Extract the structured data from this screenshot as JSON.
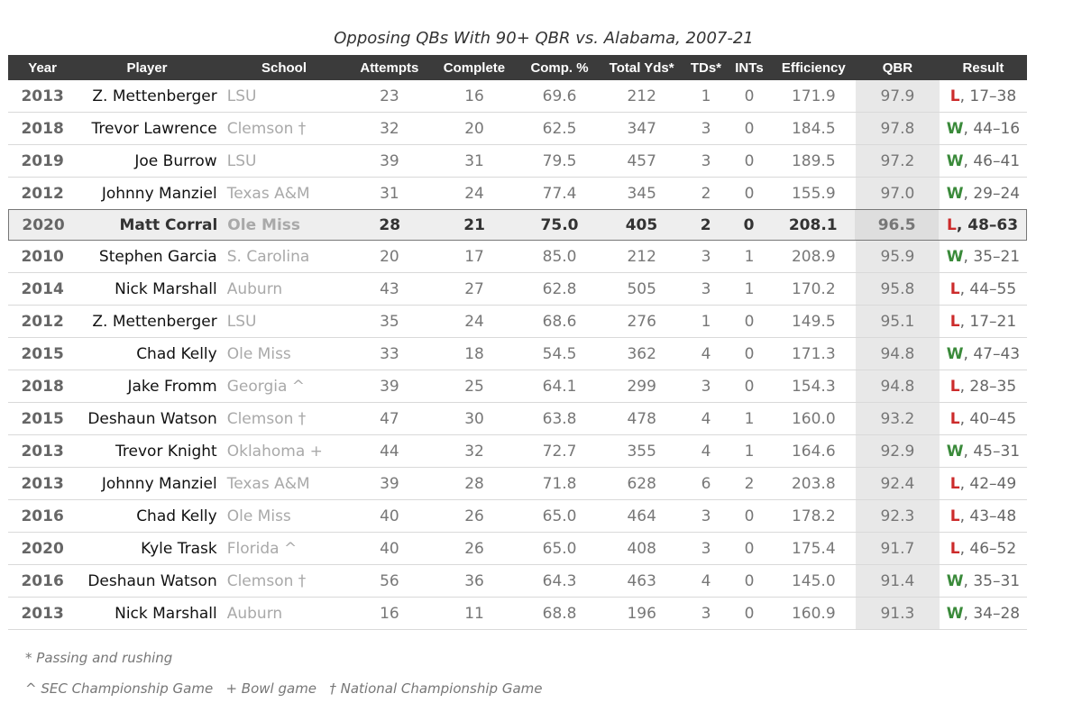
{
  "chart_data": {
    "type": "table",
    "title": "Opposing QBs With 90+ QBR vs. Alabama, 2007-21",
    "columns": [
      "Year",
      "Player",
      "School",
      "Attempts",
      "Complete",
      "Comp. %",
      "Total Yds*",
      "TDs*",
      "INTs",
      "Efficiency",
      "QBR",
      "Result"
    ],
    "highlight_row": 4,
    "rows": [
      {
        "year": "2013",
        "player": "Z. Mettenberger",
        "school": "LSU",
        "att": "23",
        "comp": "16",
        "pct": "69.6",
        "yds": "212",
        "td": "1",
        "int": "0",
        "eff": "171.9",
        "qbr": "97.9",
        "wl": "L",
        "score": ", 17–38"
      },
      {
        "year": "2018",
        "player": "Trevor Lawrence",
        "school": "Clemson †",
        "att": "32",
        "comp": "20",
        "pct": "62.5",
        "yds": "347",
        "td": "3",
        "int": "0",
        "eff": "184.5",
        "qbr": "97.8",
        "wl": "W",
        "score": ", 44–16"
      },
      {
        "year": "2019",
        "player": "Joe Burrow",
        "school": "LSU",
        "att": "39",
        "comp": "31",
        "pct": "79.5",
        "yds": "457",
        "td": "3",
        "int": "0",
        "eff": "189.5",
        "qbr": "97.2",
        "wl": "W",
        "score": ", 46–41"
      },
      {
        "year": "2012",
        "player": "Johnny Manziel",
        "school": "Texas A&M",
        "att": "31",
        "comp": "24",
        "pct": "77.4",
        "yds": "345",
        "td": "2",
        "int": "0",
        "eff": "155.9",
        "qbr": "97.0",
        "wl": "W",
        "score": ", 29–24"
      },
      {
        "year": "2020",
        "player": "Matt Corral",
        "school": "Ole Miss",
        "att": "28",
        "comp": "21",
        "pct": "75.0",
        "yds": "405",
        "td": "2",
        "int": "0",
        "eff": "208.1",
        "qbr": "96.5",
        "wl": "L",
        "score": ", 48–63"
      },
      {
        "year": "2010",
        "player": "Stephen Garcia",
        "school": "S. Carolina",
        "att": "20",
        "comp": "17",
        "pct": "85.0",
        "yds": "212",
        "td": "3",
        "int": "1",
        "eff": "208.9",
        "qbr": "95.9",
        "wl": "W",
        "score": ", 35–21"
      },
      {
        "year": "2014",
        "player": "Nick Marshall",
        "school": "Auburn",
        "att": "43",
        "comp": "27",
        "pct": "62.8",
        "yds": "505",
        "td": "3",
        "int": "1",
        "eff": "170.2",
        "qbr": "95.8",
        "wl": "L",
        "score": ", 44–55"
      },
      {
        "year": "2012",
        "player": "Z. Mettenberger",
        "school": "LSU",
        "att": "35",
        "comp": "24",
        "pct": "68.6",
        "yds": "276",
        "td": "1",
        "int": "0",
        "eff": "149.5",
        "qbr": "95.1",
        "wl": "L",
        "score": ", 17–21"
      },
      {
        "year": "2015",
        "player": "Chad Kelly",
        "school": "Ole Miss",
        "att": "33",
        "comp": "18",
        "pct": "54.5",
        "yds": "362",
        "td": "4",
        "int": "0",
        "eff": "171.3",
        "qbr": "94.8",
        "wl": "W",
        "score": ", 47–43"
      },
      {
        "year": "2018",
        "player": "Jake Fromm",
        "school": "Georgia ^",
        "att": "39",
        "comp": "25",
        "pct": "64.1",
        "yds": "299",
        "td": "3",
        "int": "0",
        "eff": "154.3",
        "qbr": "94.8",
        "wl": "L",
        "score": ", 28–35"
      },
      {
        "year": "2015",
        "player": "Deshaun Watson",
        "school": "Clemson †",
        "att": "47",
        "comp": "30",
        "pct": "63.8",
        "yds": "478",
        "td": "4",
        "int": "1",
        "eff": "160.0",
        "qbr": "93.2",
        "wl": "L",
        "score": ", 40–45"
      },
      {
        "year": "2013",
        "player": "Trevor Knight",
        "school": "Oklahoma +",
        "att": "44",
        "comp": "32",
        "pct": "72.7",
        "yds": "355",
        "td": "4",
        "int": "1",
        "eff": "164.6",
        "qbr": "92.9",
        "wl": "W",
        "score": ", 45–31"
      },
      {
        "year": "2013",
        "player": "Johnny Manziel",
        "school": "Texas A&M",
        "att": "39",
        "comp": "28",
        "pct": "71.8",
        "yds": "628",
        "td": "6",
        "int": "2",
        "eff": "203.8",
        "qbr": "92.4",
        "wl": "L",
        "score": ", 42–49"
      },
      {
        "year": "2016",
        "player": "Chad Kelly",
        "school": "Ole Miss",
        "att": "40",
        "comp": "26",
        "pct": "65.0",
        "yds": "464",
        "td": "3",
        "int": "0",
        "eff": "178.2",
        "qbr": "92.3",
        "wl": "L",
        "score": ", 43–48"
      },
      {
        "year": "2020",
        "player": "Kyle Trask",
        "school": "Florida ^",
        "att": "40",
        "comp": "26",
        "pct": "65.0",
        "yds": "408",
        "td": "3",
        "int": "0",
        "eff": "175.4",
        "qbr": "91.7",
        "wl": "L",
        "score": ", 46–52"
      },
      {
        "year": "2016",
        "player": "Deshaun Watson",
        "school": "Clemson †",
        "att": "56",
        "comp": "36",
        "pct": "64.3",
        "yds": "463",
        "td": "4",
        "int": "0",
        "eff": "145.0",
        "qbr": "91.4",
        "wl": "W",
        "score": ", 35–31"
      },
      {
        "year": "2013",
        "player": "Nick Marshall",
        "school": "Auburn",
        "att": "16",
        "comp": "11",
        "pct": "68.8",
        "yds": "196",
        "td": "3",
        "int": "0",
        "eff": "160.9",
        "qbr": "91.3",
        "wl": "W",
        "score": ", 34–28"
      }
    ],
    "footnotes": [
      "* Passing and rushing",
      "^ SEC Championship Game   + Bowl game   † National Championship Game"
    ]
  },
  "colors": {
    "win": "#3a8a3a",
    "loss": "#cc2b2b",
    "header": "#3b3b3b"
  }
}
